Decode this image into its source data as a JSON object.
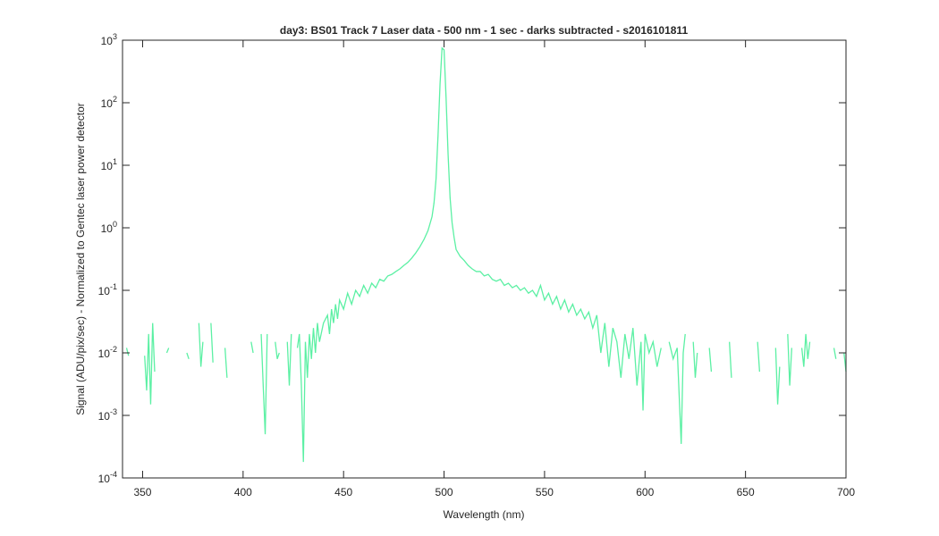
{
  "chart_data": {
    "type": "line",
    "title": "day3: BS01  Track 7 Laser data - 500 nm - 1 sec - darks subtracted - s2016101811",
    "x_label": "Wavelength (nm)",
    "y_label": "Signal (ADU/pix/sec) - Normalized to Gentec laser power detector",
    "log_y": true,
    "xlim": [
      340,
      700
    ],
    "ylim": [
      0.0001,
      1000
    ],
    "xticks": [
      350,
      400,
      450,
      500,
      550,
      600,
      650,
      700
    ],
    "yticks": [
      {
        "value": 0.0001,
        "label": "10^-4"
      },
      {
        "value": 0.001,
        "label": "10^-3"
      },
      {
        "value": 0.01,
        "label": "10^-2"
      },
      {
        "value": 0.1,
        "label": "10^-1"
      },
      {
        "value": 1,
        "label": "10^0"
      },
      {
        "value": 10,
        "label": "10^1"
      },
      {
        "value": 100,
        "label": "10^2"
      },
      {
        "value": 1000,
        "label": "10^3"
      }
    ],
    "series": [
      {
        "color": "#5cf0a4",
        "x": [
          342,
          343,
          344,
          351,
          352,
          353,
          354,
          355,
          356,
          357,
          362,
          363,
          364,
          368,
          369,
          372,
          373,
          374,
          378,
          379,
          380,
          381,
          384,
          385,
          386,
          391,
          392,
          393,
          395,
          396,
          404,
          405,
          406,
          409,
          410,
          411,
          412,
          413,
          416,
          417,
          418,
          419,
          422,
          423,
          424,
          425,
          427,
          428,
          429,
          430,
          431,
          432,
          433,
          434,
          435,
          436,
          437,
          438,
          440,
          442,
          443,
          444,
          445,
          446,
          447,
          448,
          450,
          452,
          454,
          456,
          458,
          460,
          462,
          464,
          466,
          468,
          470,
          472,
          474,
          476,
          478,
          480,
          482,
          484,
          486,
          488,
          490,
          492,
          494,
          495,
          496,
          497,
          498,
          499,
          500,
          501,
          502,
          503,
          504,
          505,
          506,
          508,
          510,
          512,
          514,
          516,
          518,
          520,
          522,
          524,
          526,
          528,
          530,
          532,
          534,
          536,
          538,
          540,
          542,
          544,
          546,
          548,
          550,
          552,
          554,
          556,
          558,
          560,
          562,
          564,
          566,
          568,
          570,
          572,
          574,
          576,
          578,
          580,
          582,
          584,
          586,
          588,
          590,
          592,
          594,
          596,
          598,
          599,
          600,
          602,
          604,
          606,
          608,
          610,
          612,
          614,
          616,
          618,
          619,
          620,
          621,
          624,
          625,
          626,
          627,
          632,
          633,
          634,
          638,
          639,
          642,
          643,
          644,
          650,
          651,
          656,
          657,
          658,
          665,
          666,
          667,
          668,
          671,
          672,
          673,
          674,
          678,
          679,
          680,
          681,
          682,
          683,
          694,
          695,
          696,
          699,
          700
        ],
        "values": [
          0.012,
          0.009,
          null,
          0.009,
          0.0025,
          0.02,
          0.0015,
          0.03,
          0.005,
          null,
          0.01,
          0.012,
          null,
          0.02,
          null,
          0.01,
          0.008,
          null,
          0.03,
          0.006,
          0.015,
          null,
          0.03,
          0.007,
          null,
          0.012,
          0.004,
          null,
          0.025,
          null,
          0.015,
          0.01,
          null,
          0.02,
          0.003,
          0.0005,
          0.02,
          null,
          0.015,
          0.008,
          0.01,
          null,
          0.015,
          0.003,
          0.02,
          null,
          0.012,
          0.02,
          0.003,
          0.00018,
          0.015,
          0.004,
          0.02,
          0.008,
          0.025,
          0.01,
          0.03,
          0.015,
          0.03,
          0.04,
          0.02,
          0.05,
          0.03,
          0.06,
          0.035,
          0.07,
          0.05,
          0.09,
          0.06,
          0.1,
          0.08,
          0.12,
          0.09,
          0.13,
          0.11,
          0.15,
          0.14,
          0.17,
          0.18,
          0.2,
          0.22,
          0.25,
          0.28,
          0.33,
          0.4,
          0.5,
          0.65,
          0.9,
          1.5,
          2.5,
          6,
          30,
          200,
          750,
          700,
          120,
          15,
          3,
          1.2,
          0.7,
          0.45,
          0.35,
          0.3,
          0.25,
          0.22,
          0.2,
          0.2,
          0.17,
          0.18,
          0.15,
          0.14,
          0.15,
          0.12,
          0.13,
          0.11,
          0.12,
          0.1,
          0.11,
          0.09,
          0.1,
          0.08,
          0.12,
          0.07,
          0.09,
          0.06,
          0.08,
          0.05,
          0.07,
          0.045,
          0.06,
          0.04,
          0.05,
          0.035,
          0.045,
          0.025,
          0.04,
          0.01,
          0.03,
          0.006,
          0.025,
          0.015,
          0.004,
          0.02,
          0.008,
          0.025,
          0.003,
          0.015,
          0.0012,
          0.02,
          0.01,
          0.015,
          0.006,
          0.012,
          null,
          0.015,
          0.008,
          0.012,
          0.00035,
          0.01,
          0.02,
          null,
          0.015,
          0.004,
          0.01,
          null,
          0.012,
          0.005,
          null,
          0.01,
          null,
          0.015,
          0.004,
          null,
          0.012,
          null,
          0.015,
          0.005,
          null,
          0.012,
          0.0015,
          0.006,
          null,
          0.02,
          0.003,
          0.012,
          null,
          0.012,
          0.006,
          0.02,
          0.008,
          0.015,
          null,
          0.012,
          0.008,
          null,
          0.01,
          0.005
        ]
      }
    ]
  }
}
